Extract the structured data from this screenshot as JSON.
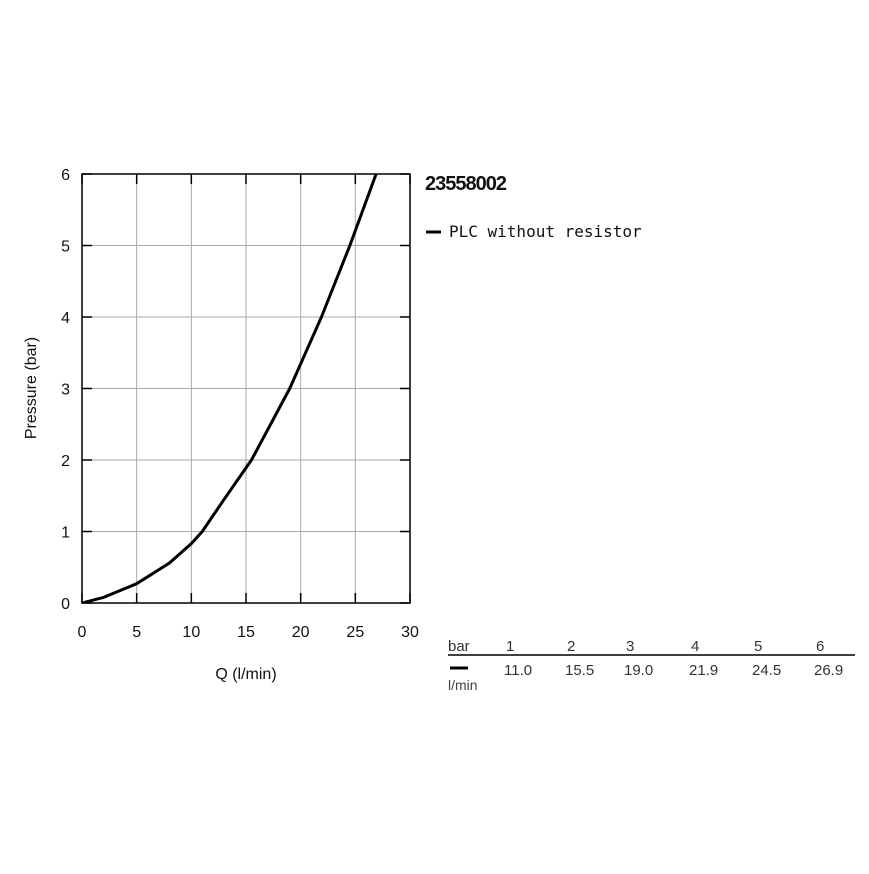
{
  "chart_data": {
    "type": "line",
    "title": "23558002",
    "xlabel": "Q (l/min)",
    "ylabel": "Pressure (bar)",
    "x": [
      0,
      2,
      5,
      8,
      10,
      11,
      13,
      15.5,
      19,
      21.9,
      24.5,
      26.9
    ],
    "series": [
      {
        "name": "PLC without resistor",
        "color": "#000000",
        "values": [
          0,
          0.08,
          0.27,
          0.56,
          0.83,
          1,
          1.45,
          2,
          3,
          4,
          5,
          6
        ]
      }
    ],
    "xlim": [
      0,
      30
    ],
    "ylim": [
      0,
      6
    ],
    "xticks": [
      0,
      5,
      10,
      15,
      20,
      25,
      30
    ],
    "yticks": [
      0,
      1,
      2,
      3,
      4,
      5,
      6
    ],
    "grid": true
  },
  "table": {
    "rows": [
      [
        "bar",
        "1",
        "2",
        "3",
        "4",
        "5",
        "6"
      ],
      [
        "l/min",
        "11.0",
        "15.5",
        "19.0",
        "21.9",
        "24.5",
        "26.9"
      ]
    ]
  }
}
